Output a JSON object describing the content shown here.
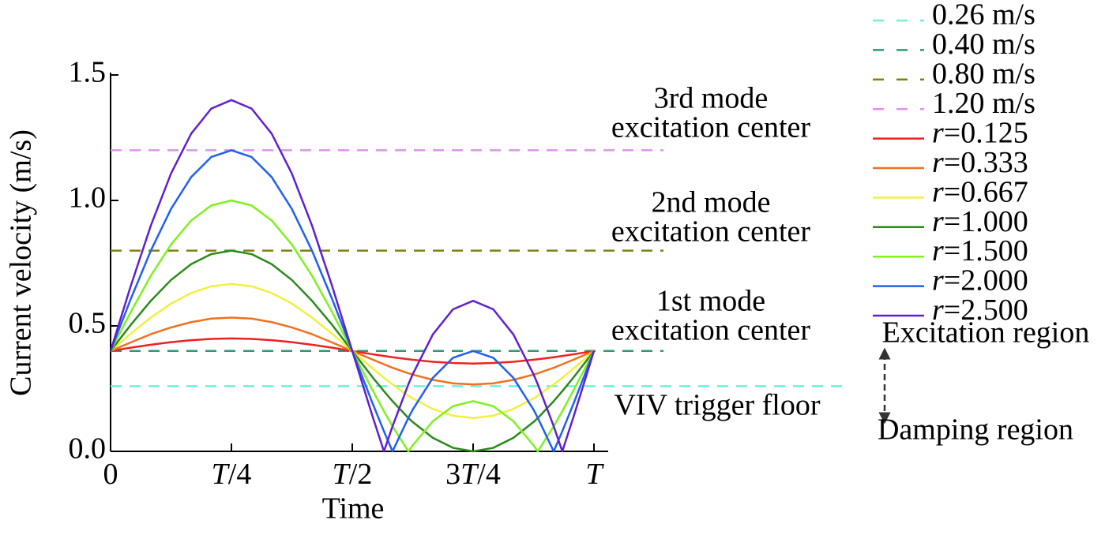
{
  "chart_data": {
    "type": "line",
    "x_label": "Time",
    "y_label": "Current velocity (m/s)",
    "x": [
      0,
      0.0417,
      0.0833,
      0.125,
      0.1667,
      0.2083,
      0.25,
      0.2917,
      0.3333,
      0.375,
      0.4167,
      0.4583,
      0.5,
      0.5417,
      0.5655,
      0.5833,
      0.616,
      0.625,
      0.6667,
      0.7083,
      0.75,
      0.7917,
      0.8333,
      0.875,
      0.8839,
      0.9167,
      0.9345,
      0.9583,
      1
    ],
    "xlim": [
      0,
      1
    ],
    "xticks": [
      0,
      {
        "value": 0.25,
        "label": "T/4"
      },
      {
        "value": 0.5,
        "label": "T/2"
      },
      {
        "value": 0.75,
        "label": "3T/4"
      },
      {
        "value": 1,
        "label": "T"
      }
    ],
    "ylim": [
      0,
      1.5
    ],
    "yticks": [
      {
        "value": 0,
        "label": "0.0"
      },
      0.5,
      {
        "value": 1,
        "label": "1.0"
      },
      1.5
    ],
    "reference_lines": [
      {
        "name": "0.26 m/s",
        "value": 0.26,
        "color": "#70f0d8"
      },
      {
        "name": "0.40 m/s",
        "value": 0.4,
        "color": "#2a9a7a"
      },
      {
        "name": "0.80 m/s",
        "value": 0.8,
        "color": "#808010"
      },
      {
        "name": "1.20 m/s",
        "value": 1.2,
        "color": "#e090f0"
      }
    ],
    "series": [
      {
        "name": "r=0.125",
        "color": "#f02020",
        "values": [
          0.4,
          0.413,
          0.425,
          0.435,
          0.443,
          0.448,
          0.45,
          0.448,
          0.443,
          0.435,
          0.425,
          0.413,
          0.4,
          0.387,
          0.38,
          0.375,
          0.367,
          0.365,
          0.357,
          0.352,
          0.35,
          0.352,
          0.357,
          0.365,
          0.367,
          0.375,
          0.38,
          0.387,
          0.4
        ]
      },
      {
        "name": "r=0.333",
        "color": "#f07020",
        "values": [
          0.4,
          0.434,
          0.467,
          0.494,
          0.515,
          0.529,
          0.533,
          0.529,
          0.515,
          0.494,
          0.467,
          0.434,
          0.4,
          0.366,
          0.347,
          0.333,
          0.311,
          0.306,
          0.285,
          0.271,
          0.267,
          0.271,
          0.285,
          0.306,
          0.311,
          0.333,
          0.347,
          0.366,
          0.4
        ]
      },
      {
        "name": "r=0.667",
        "color": "#f0f040",
        "values": [
          0.4,
          0.469,
          0.533,
          0.589,
          0.631,
          0.658,
          0.667,
          0.658,
          0.631,
          0.589,
          0.533,
          0.469,
          0.4,
          0.331,
          0.293,
          0.267,
          0.222,
          0.211,
          0.169,
          0.142,
          0.133,
          0.142,
          0.169,
          0.211,
          0.222,
          0.267,
          0.293,
          0.331,
          0.4
        ]
      },
      {
        "name": "r=1.000",
        "color": "#2a8a1a",
        "values": [
          0.4,
          0.504,
          0.6,
          0.683,
          0.746,
          0.786,
          0.8,
          0.786,
          0.746,
          0.683,
          0.6,
          0.504,
          0.4,
          0.296,
          0.24,
          0.2,
          0.133,
          0.117,
          0.054,
          0.014,
          0,
          0.014,
          0.054,
          0.117,
          0.133,
          0.2,
          0.24,
          0.296,
          0.4
        ]
      },
      {
        "name": "r=1.500",
        "color": "#80f020",
        "values": [
          0.4,
          0.555,
          0.7,
          0.824,
          0.92,
          0.98,
          1,
          0.98,
          0.92,
          0.824,
          0.7,
          0.555,
          0.4,
          0.245,
          0.16,
          0.1,
          0,
          0.024,
          0.12,
          0.18,
          0.2,
          0.18,
          0.12,
          0.024,
          0,
          0.1,
          0.16,
          0.245,
          0.4
        ]
      },
      {
        "name": "r=2.000",
        "color": "#2060f0",
        "values": [
          0.4,
          0.607,
          0.8,
          0.966,
          1.093,
          1.173,
          1.2,
          1.173,
          1.093,
          0.966,
          0.8,
          0.607,
          0.4,
          0.193,
          0.08,
          0,
          0.133,
          0.166,
          0.293,
          0.373,
          0.4,
          0.373,
          0.293,
          0.166,
          0.133,
          0,
          0.08,
          0.193,
          0.4
        ]
      },
      {
        "name": "r=2.500",
        "color": "#6020d0",
        "values": [
          0.4,
          0.659,
          0.9,
          1.107,
          1.266,
          1.366,
          1.4,
          1.366,
          1.266,
          1.107,
          0.9,
          0.659,
          0.4,
          0.141,
          0,
          0.1,
          0.267,
          0.307,
          0.466,
          0.566,
          0.6,
          0.566,
          0.466,
          0.307,
          0.267,
          0.1,
          0,
          0.141,
          0.4
        ]
      }
    ],
    "annotations": [
      {
        "lines": [
          "3rd mode",
          "excitation center"
        ],
        "color": "#d98ae8"
      },
      {
        "lines": [
          "2nd mode",
          "excitation center"
        ],
        "color": "#808010"
      },
      {
        "lines": [
          "1st mode",
          "excitation center"
        ],
        "color": "#2a9a7a"
      },
      {
        "lines": [
          "VIV trigger floor"
        ],
        "color": "#70f0d8"
      }
    ],
    "regions": [
      "Excitation region",
      "Damping region"
    ]
  }
}
